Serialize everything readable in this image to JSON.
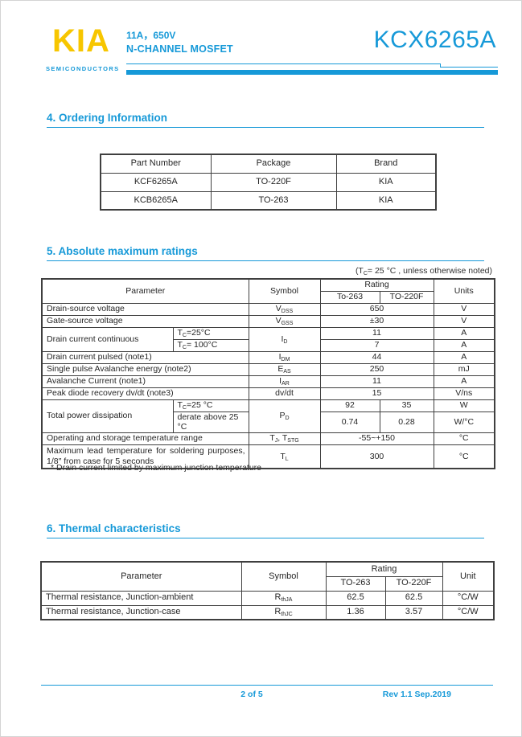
{
  "colors": {
    "accent_blue": "#1699d8",
    "logo_yellow": "#f7c600",
    "table_border": "#3f3f3f",
    "text": "#262626"
  },
  "header": {
    "logo_text": "KIA",
    "logo_sub": "SEMICONDUCTORS",
    "rating_line": "11A，650V",
    "type_line": "N-CHANNEL MOSFET",
    "part_number": "KCX6265A"
  },
  "sections": {
    "ordering": {
      "title": "4. Ordering Information"
    },
    "abs_max": {
      "title": "5. Absolute maximum ratings",
      "note": [
        {
          "t": "(T"
        },
        {
          "s": "C"
        },
        {
          "t": "= 25 °C , unless otherwise noted)"
        }
      ]
    },
    "thermal": {
      "title": "6. Thermal characteristics"
    }
  },
  "ordering_table": {
    "headers": [
      "Part Number",
      "Package",
      "Brand"
    ],
    "rows": [
      {
        "part": "KCF6265A",
        "package": "TO-220F",
        "brand": "KIA"
      },
      {
        "part": "KCB6265A",
        "package": "TO-263",
        "brand": "KIA"
      }
    ]
  },
  "abs_table": {
    "header": {
      "parameter": "Parameter",
      "symbol": "Symbol",
      "rating": "Rating",
      "units": "Units",
      "pkg1": "To-263",
      "pkg2": "TO-220F"
    },
    "rows": {
      "vdss": {
        "param": "Drain-source voltage",
        "sym": [
          {
            "t": "V"
          },
          {
            "s": "DSS"
          }
        ],
        "val": "650",
        "unit": "V"
      },
      "vgss": {
        "param": "Gate-source voltage",
        "sym": [
          {
            "t": "V"
          },
          {
            "s": "GSS"
          }
        ],
        "val": "±30",
        "unit": "V"
      },
      "id": {
        "param": "Drain current continuous",
        "cond1": [
          {
            "t": "T"
          },
          {
            "s": "C"
          },
          {
            "t": "=25°C"
          }
        ],
        "cond2": [
          {
            "t": "T"
          },
          {
            "s": "C"
          },
          {
            "t": "= 100°C"
          }
        ],
        "sym": [
          {
            "t": "I"
          },
          {
            "s": "D"
          }
        ],
        "val1": "11",
        "unit1": "A",
        "val2": "7",
        "unit2": "A"
      },
      "idm": {
        "param": "Drain current pulsed (note1)",
        "sym": [
          {
            "t": "I"
          },
          {
            "s": "DM"
          }
        ],
        "val": "44",
        "unit": "A"
      },
      "eas": {
        "param": "Single pulse Avalanche energy (note2)",
        "sym": [
          {
            "t": "E"
          },
          {
            "s": "AS"
          }
        ],
        "val": "250",
        "unit": "mJ"
      },
      "iar": {
        "param": "Avalanche Current  (note1)",
        "sym": [
          {
            "t": "I"
          },
          {
            "s": "AR"
          }
        ],
        "val": "11",
        "unit": "A"
      },
      "dvdt": {
        "param": "Peak diode recovery dv/dt (note3)",
        "sym": [
          {
            "t": "dv/dt"
          }
        ],
        "val": "15",
        "unit": "V/ns"
      },
      "pd": {
        "param": "Total power dissipation",
        "cond1": [
          {
            "t": "T"
          },
          {
            "s": "C"
          },
          {
            "t": "=25 °C"
          }
        ],
        "cond2": [
          {
            "t": "derate above 25 °C"
          }
        ],
        "sym": [
          {
            "t": "P"
          },
          {
            "s": "D"
          }
        ],
        "val1a": "92",
        "val1b": "35",
        "unit1": "W",
        "val2a": "0.74",
        "val2b": "0.28",
        "unit2": "W/°C"
      },
      "tstg": {
        "param": "Operating and storage temperature range",
        "sym": [
          {
            "t": "T"
          },
          {
            "s": "J"
          },
          {
            "t": ", T"
          },
          {
            "s": "STG"
          }
        ],
        "val": "-55~+150",
        "unit": "°C"
      },
      "tl": {
        "param": "Maximum lead temperature for soldering purposes, 1/8″ from case for 5 seconds",
        "sym": [
          {
            "t": "T"
          },
          {
            "s": "L"
          }
        ],
        "val": "300",
        "unit": "°C"
      }
    },
    "footnote": "* Drain current limited by maximum junction temperature"
  },
  "thermal_table": {
    "header": {
      "parameter": "Parameter",
      "symbol": "Symbol",
      "rating": "Rating",
      "unit": "Unit",
      "pkg1": "TO-263",
      "pkg2": "TO-220F"
    },
    "rows": [
      {
        "param": "Thermal resistance, Junction-ambient",
        "sym": [
          {
            "t": "R"
          },
          {
            "s": "thJA"
          }
        ],
        "v1": "62.5",
        "v2": "62.5",
        "unit": "°C/W"
      },
      {
        "param": "Thermal resistance, Junction-case",
        "sym": [
          {
            "t": "R"
          },
          {
            "s": "thJC"
          }
        ],
        "v1": "1.36",
        "v2": "3.57",
        "unit": "°C/W"
      }
    ]
  },
  "footer": {
    "page": "2 of 5",
    "rev": "Rev 1.1 Sep.2019"
  }
}
